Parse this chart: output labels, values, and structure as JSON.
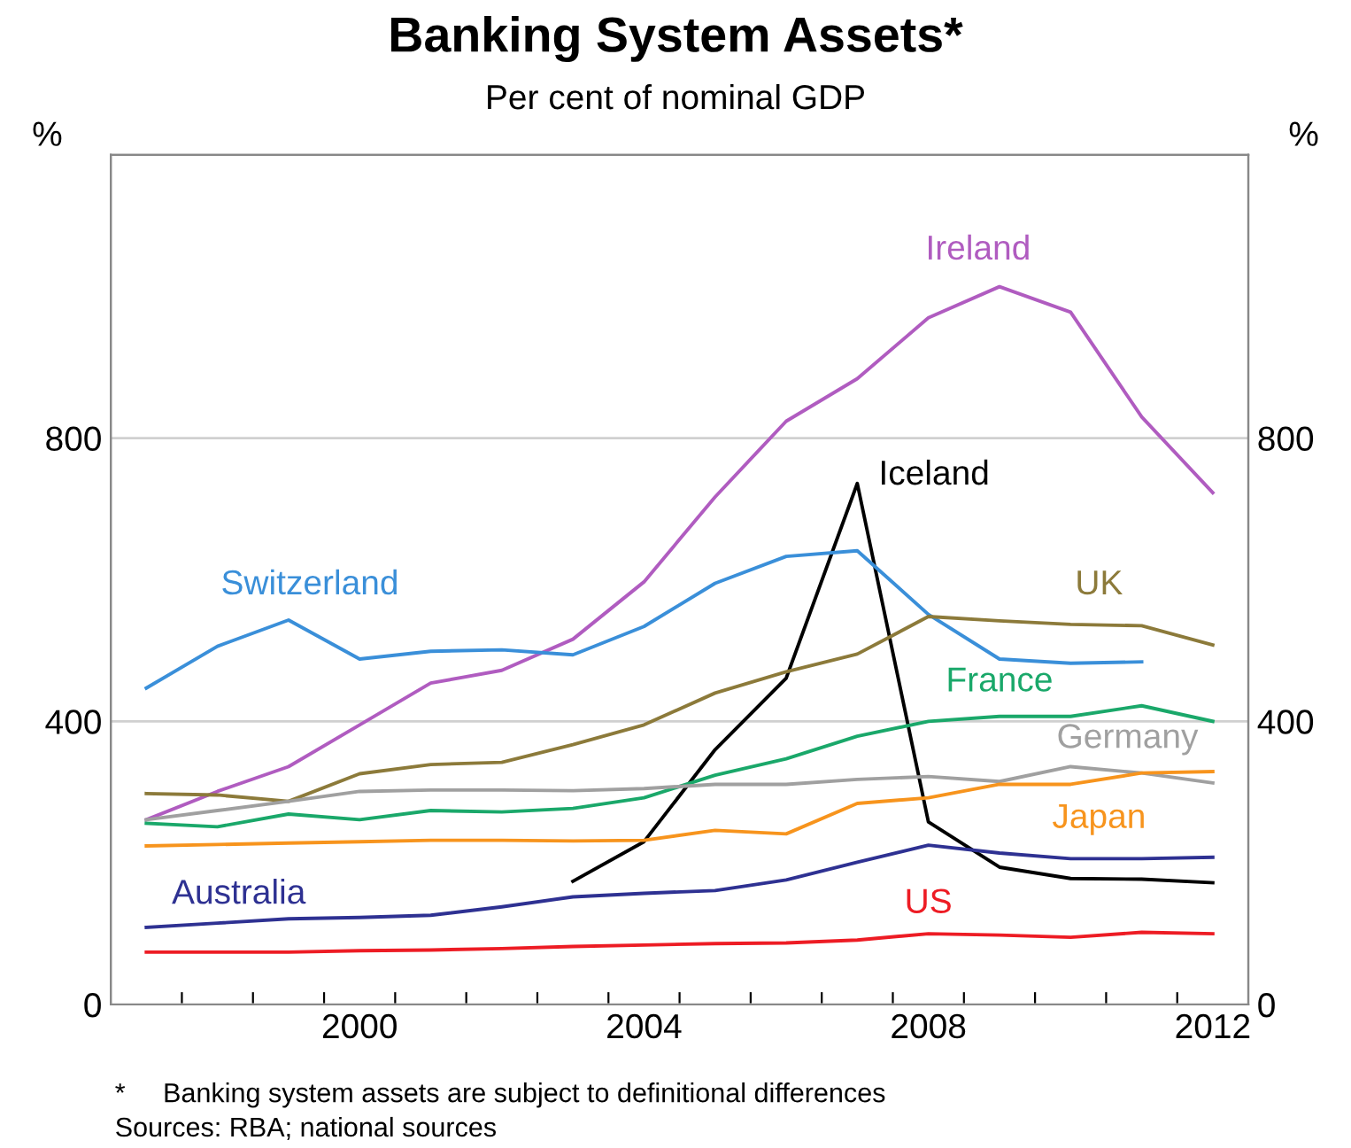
{
  "chart_data": {
    "type": "line",
    "title": "Banking System Assets*",
    "subtitle": "Per cent of nominal GDP",
    "ylabel": "%",
    "y2label": "%",
    "x": [
      1997,
      1998,
      1999,
      2000,
      2001,
      2002,
      2003,
      2004,
      2005,
      2006,
      2007,
      2008,
      2009,
      2010,
      2011,
      2012
    ],
    "series": [
      {
        "name": "Ireland",
        "color": "#b05cc0",
        "values": [
          261,
          301,
          336,
          395,
          454,
          472,
          516,
          597,
          717,
          824,
          884,
          970,
          1014,
          978,
          830,
          723
        ]
      },
      {
        "name": "Iceland",
        "color": "#000000",
        "values": [
          null,
          null,
          null,
          null,
          null,
          null,
          174,
          230,
          360,
          461,
          736,
          258,
          194,
          178,
          177,
          172
        ]
      },
      {
        "name": "Switzerland",
        "color": "#3a8fd9",
        "values": [
          447,
          506,
          543,
          488,
          499,
          501,
          494,
          534,
          595,
          633,
          641,
          551,
          488,
          482,
          484,
          null
        ]
      },
      {
        "name": "UK",
        "color": "#8c7a3a",
        "values": [
          298,
          296,
          287,
          326,
          339,
          342,
          367,
          395,
          440,
          470,
          495,
          548,
          542,
          537,
          535,
          508
        ]
      },
      {
        "name": "France",
        "color": "#1aa86a",
        "values": [
          256,
          251,
          269,
          261,
          274,
          272,
          277,
          292,
          324,
          347,
          379,
          400,
          407,
          407,
          422,
          400
        ]
      },
      {
        "name": "Germany",
        "color": "#a0a0a0",
        "values": [
          261,
          274,
          287,
          301,
          303,
          303,
          302,
          305,
          311,
          311,
          318,
          322,
          315,
          336,
          327,
          313
        ]
      },
      {
        "name": "Japan",
        "color": "#f7941d",
        "values": [
          224,
          226,
          228,
          230,
          232,
          232,
          231,
          232,
          246,
          241,
          284,
          292,
          311,
          311,
          327,
          329
        ]
      },
      {
        "name": "Australia",
        "color": "#2e3192",
        "values": [
          109,
          115,
          121,
          123,
          126,
          138,
          152,
          157,
          161,
          176,
          201,
          225,
          214,
          206,
          206,
          208
        ]
      },
      {
        "name": "US",
        "color": "#ed1c24",
        "values": [
          74,
          74,
          74,
          76,
          77,
          79,
          82,
          84,
          86,
          87,
          91,
          100,
          98,
          95,
          102,
          100
        ]
      }
    ],
    "xlim": [
      1996.5,
      2012.5
    ],
    "xticks": [
      {
        "value": 1997.5,
        "label": null
      },
      {
        "value": 1998.5,
        "label": null
      },
      {
        "value": 1999.5,
        "label": null
      },
      2000,
      {
        "value": 2000.5,
        "label": null
      },
      {
        "value": 2001.5,
        "label": null
      },
      {
        "value": 2002.5,
        "label": null
      },
      {
        "value": 2003.5,
        "label": null
      },
      2004,
      {
        "value": 2004.5,
        "label": null
      },
      {
        "value": 2005.5,
        "label": null
      },
      {
        "value": 2006.5,
        "label": null
      },
      {
        "value": 2007.5,
        "label": null
      },
      2008,
      {
        "value": 2008.5,
        "label": null
      },
      {
        "value": 2009.5,
        "label": null
      },
      {
        "value": 2010.5,
        "label": null
      },
      {
        "value": 2011.5,
        "label": null
      },
      2012
    ],
    "ylim": [
      0,
      1200
    ],
    "yticks": [
      0,
      400,
      800
    ],
    "y2lim": [
      0,
      1200
    ],
    "y2ticks": [
      0,
      400,
      800
    ],
    "grid": "y",
    "legend": false,
    "line_style": "solid",
    "marker": "none",
    "annotations": [
      "*     Banking system assets are subject to definitional differences",
      "Sources: RBA; national sources"
    ]
  }
}
